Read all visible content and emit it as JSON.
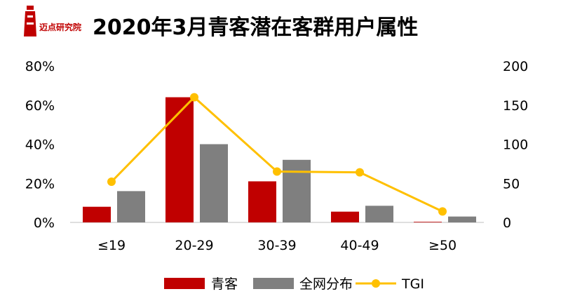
{
  "header": {
    "logo_text": "迈点研究院",
    "title": "2020年3月青客潜在客群用户属性"
  },
  "colors": {
    "qingke": "#c00000",
    "network": "#7f7f7f",
    "tgi": "#ffc000",
    "logo": "#c00000"
  },
  "chart_data": {
    "type": "bar",
    "categories": [
      "≤19",
      "20-29",
      "30-39",
      "40-49",
      "≥50"
    ],
    "series": [
      {
        "name": "青客",
        "type": "bar",
        "axis": "left",
        "values": [
          8,
          64,
          21,
          5.5,
          0.3
        ]
      },
      {
        "name": "全网分布",
        "type": "bar",
        "axis": "left",
        "values": [
          16,
          40,
          32,
          8.5,
          3
        ]
      },
      {
        "name": "TGI",
        "type": "line",
        "axis": "right",
        "values": [
          52,
          160,
          65,
          64,
          14
        ]
      }
    ],
    "y_left": {
      "lim": [
        0,
        80
      ],
      "ticks": [
        "0%",
        "20%",
        "40%",
        "60%",
        "80%"
      ],
      "values": [
        0,
        20,
        40,
        60,
        80
      ]
    },
    "y_right": {
      "lim": [
        0,
        200
      ],
      "ticks": [
        "0",
        "50",
        "100",
        "150",
        "200"
      ],
      "values": [
        0,
        50,
        100,
        150,
        200
      ]
    },
    "legend": {
      "position": "bottom",
      "items": [
        "青客",
        "全网分布",
        "TGI"
      ]
    },
    "grid": false
  }
}
